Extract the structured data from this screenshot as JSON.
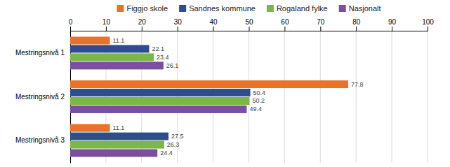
{
  "chart_data": {
    "type": "bar",
    "orientation": "horizontal",
    "categories": [
      "Mestringsnivå 1",
      "Mestringsnivå 2",
      "Mestringsnivå 3"
    ],
    "series": [
      {
        "name": "Figgjo skole",
        "color": "#E8722A",
        "values": [
          11.1,
          77.8,
          11.1
        ]
      },
      {
        "name": "Sandnes kommune",
        "color": "#2E4D8B",
        "values": [
          22.1,
          50.4,
          27.5
        ]
      },
      {
        "name": "Rogaland fylke",
        "color": "#7AB648",
        "values": [
          23.4,
          50.2,
          26.3
        ]
      },
      {
        "name": "Nasjonalt",
        "color": "#7B4E9E",
        "values": [
          26.1,
          49.4,
          24.4
        ]
      }
    ],
    "xlim": [
      0,
      100
    ],
    "xticks": [
      0,
      10,
      20,
      30,
      40,
      50,
      60,
      70,
      80,
      90,
      100
    ],
    "grid": true,
    "data_labels": true,
    "legend": "top"
  }
}
